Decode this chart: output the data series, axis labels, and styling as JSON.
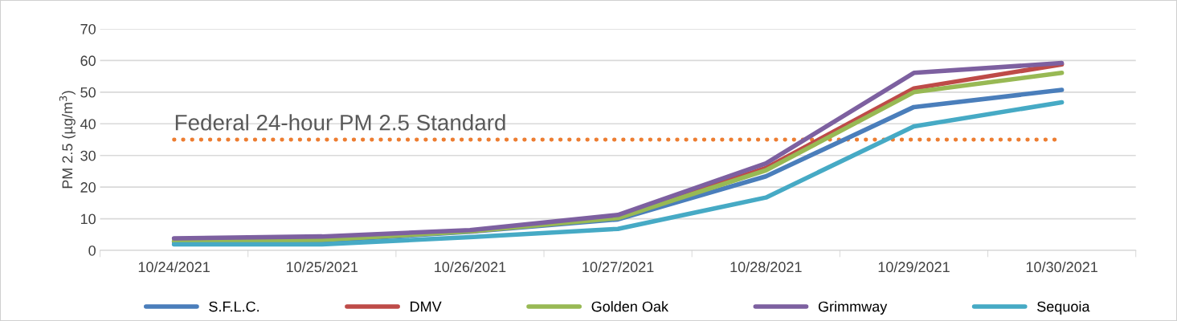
{
  "chart_data": {
    "type": "line",
    "ylabel": "PM 2.5 (µg/m$^{3}$)",
    "categories": [
      "10/24/2021",
      "10/25/2021",
      "10/26/2021",
      "10/27/2021",
      "10/28/2021",
      "10/29/2021",
      "10/30/2021"
    ],
    "series": [
      {
        "name": "S.F.L.C.",
        "color": "#4a7ebb",
        "values": [
          2.7,
          3.0,
          5.9,
          9.8,
          23.4,
          45.3,
          50.7
        ]
      },
      {
        "name": "DMV",
        "color": "#be4b48",
        "values": [
          null,
          null,
          6.0,
          10.5,
          26.0,
          51.2,
          58.8
        ]
      },
      {
        "name": "Golden Oak",
        "color": "#98b954",
        "values": [
          3.0,
          3.3,
          6.0,
          10.2,
          25.3,
          50.0,
          56.1
        ]
      },
      {
        "name": "Grimmway",
        "color": "#7d60a0",
        "values": [
          3.8,
          4.4,
          6.4,
          11.2,
          27.5,
          56.1,
          59.2
        ]
      },
      {
        "name": "Sequoia",
        "color": "#46aac5",
        "values": [
          1.9,
          1.9,
          4.2,
          6.8,
          16.7,
          39.2,
          46.8
        ]
      }
    ],
    "ref_lines": [
      {
        "axis": "y",
        "value": 35,
        "label": "Federal 24-hour PM 2.5 Standard",
        "color": "#ed7d31",
        "line_style": "dotted"
      }
    ],
    "ylim": [
      0,
      70
    ],
    "yticks": [
      0,
      10,
      20,
      30,
      40,
      50,
      60,
      70
    ],
    "grid": "y",
    "legend": "bottom",
    "marker": "none",
    "line_style": "solid"
  }
}
